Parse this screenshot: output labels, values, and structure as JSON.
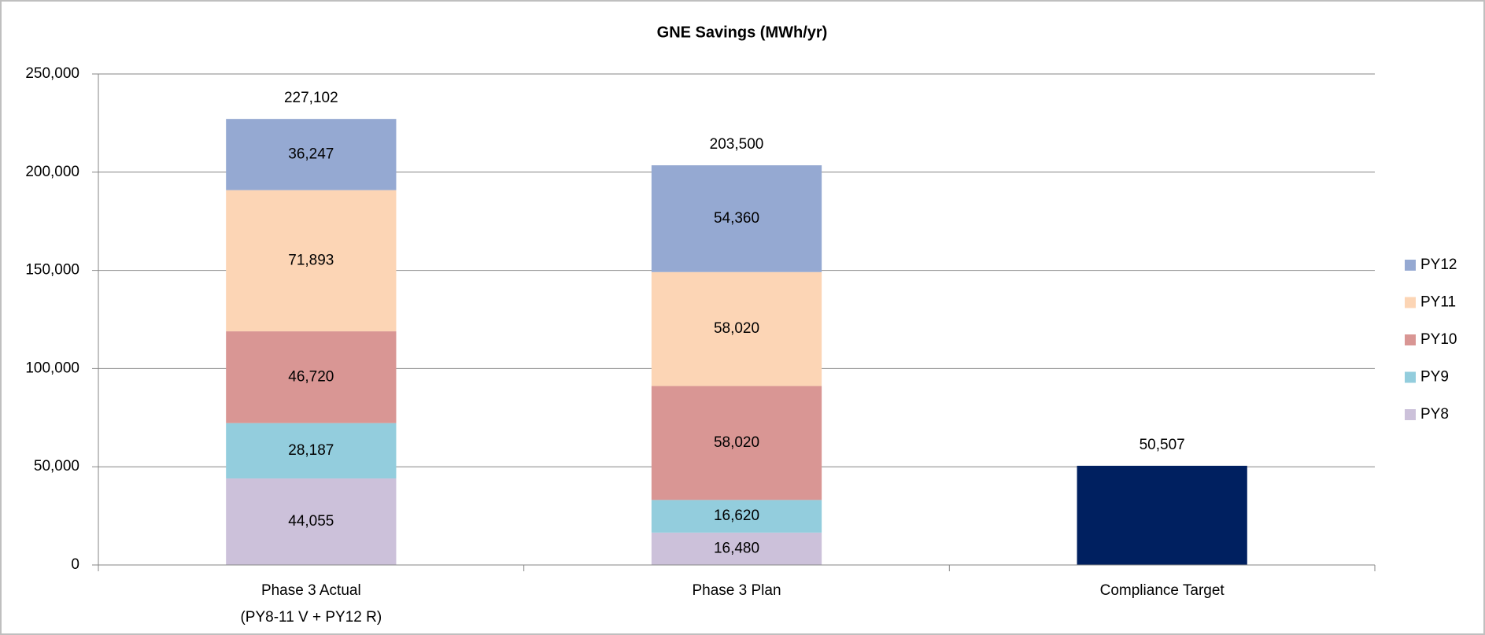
{
  "chart_data": {
    "type": "stacked_bar",
    "title": "GNE Savings (MWh/yr)",
    "categories": [
      "Phase 3 Actual\n(PY8-11 V + PY12 R)",
      "Phase 3 Plan",
      "Compliance Target"
    ],
    "series": [
      {
        "name": "PY8",
        "color": "#ccc1da",
        "values": [
          44055,
          16480,
          null
        ],
        "value_labels": [
          "44,055",
          "16,480",
          null
        ]
      },
      {
        "name": "PY9",
        "color": "#93cddd",
        "values": [
          28187,
          16620,
          null
        ],
        "value_labels": [
          "28,187",
          "16,620",
          null
        ]
      },
      {
        "name": "PY10",
        "color": "#d99694",
        "values": [
          46720,
          58020,
          null
        ],
        "value_labels": [
          "46,720",
          "58,020",
          null
        ]
      },
      {
        "name": "PY11",
        "color": "#fcd5b5",
        "values": [
          71893,
          58020,
          null
        ],
        "value_labels": [
          "71,893",
          "58,020",
          null
        ]
      },
      {
        "name": "PY12",
        "color": "#95a9d2",
        "values": [
          36247,
          54360,
          null
        ],
        "value_labels": [
          "36,247",
          "54,360",
          null
        ]
      }
    ],
    "target": {
      "color": "#002060",
      "values": [
        null,
        null,
        50507
      ],
      "value_labels": [
        null,
        null,
        "50,507"
      ]
    },
    "total_labels": [
      "227,102",
      "203,500",
      null
    ],
    "ylim": [
      0,
      250000
    ],
    "yticks": [
      0,
      {
        "value": 50000,
        "label": "50,000"
      },
      {
        "value": 100000,
        "label": "100,000"
      },
      {
        "value": 150000,
        "label": "150,000"
      },
      {
        "value": 200000,
        "label": "200,000"
      },
      {
        "value": 250000,
        "label": "250,000"
      }
    ],
    "grid": true,
    "legend": "right"
  }
}
